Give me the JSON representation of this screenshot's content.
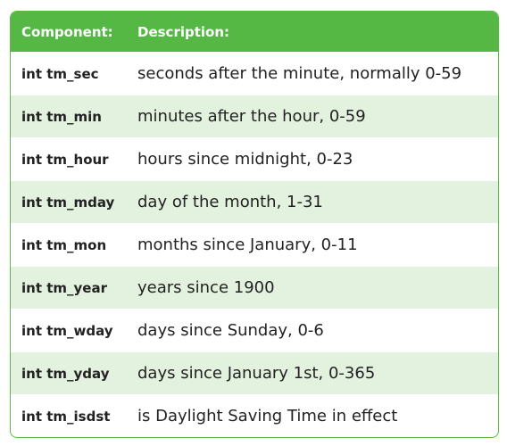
{
  "header": {
    "component": "Component:",
    "description": "Description:"
  },
  "rows": [
    {
      "component": "int tm_sec",
      "description": "seconds after the minute, normally 0-59"
    },
    {
      "component": "int tm_min",
      "description": "minutes after the hour, 0-59"
    },
    {
      "component": "int tm_hour",
      "description": "hours since midnight, 0-23"
    },
    {
      "component": "int tm_mday",
      "description": "day of the month, 1-31"
    },
    {
      "component": "int tm_mon",
      "description": "months since January, 0-11"
    },
    {
      "component": "int tm_year",
      "description": "years since 1900"
    },
    {
      "component": "int tm_wday",
      "description": "days since Sunday, 0-6"
    },
    {
      "component": "int tm_yday",
      "description": "days since January 1st, 0-365"
    },
    {
      "component": "int tm_isdst",
      "description": "is Daylight Saving Time in effect"
    }
  ],
  "colors": {
    "header_bg": "#55b845",
    "shaded_row_bg": "#e3f1df",
    "border": "#5db946"
  }
}
